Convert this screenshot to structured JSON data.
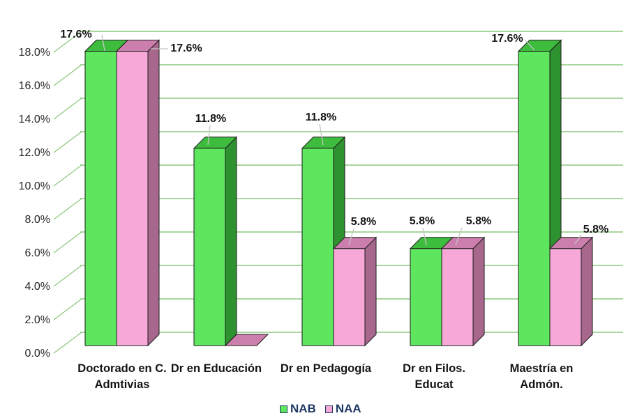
{
  "chart_data": {
    "type": "bar",
    "subtype": "3d-clustered-column",
    "title": "",
    "categories": [
      "Doctorado en C. Admtivias",
      "Dr en Educación",
      "Dr en Pedagogía",
      "Dr en Filos. Educat",
      "Maestría en Admón."
    ],
    "category_display_lines": [
      [
        "Doctorado en C.",
        "Admtivias"
      ],
      [
        "Dr en Educación"
      ],
      [
        "Dr en Pedagogía"
      ],
      [
        "Dr en Filos.",
        "Educat"
      ],
      [
        "Maestría en",
        "Admón."
      ]
    ],
    "series": [
      {
        "name": "NAB",
        "values": [
          17.6,
          11.8,
          11.8,
          5.8,
          17.6
        ],
        "labels": [
          "17.6%",
          "11.8%",
          "11.8%",
          "5.8%",
          "17.6%"
        ],
        "color_front": "#5FE65F",
        "color_top": "#3EBC3E",
        "color_side": "#2E9230"
      },
      {
        "name": "NAA",
        "values": [
          17.6,
          0,
          5.8,
          5.8,
          5.8
        ],
        "labels": [
          "17.6%",
          null,
          "5.8%",
          "5.8%",
          "5.8%"
        ],
        "color_front": "#F8A8D8",
        "color_top": "#CC7FAC",
        "color_side": "#A8688E"
      }
    ],
    "y_axis": {
      "min": 0,
      "max": 18,
      "step": 2,
      "tick_labels": [
        "0.0%",
        "2.0%",
        "4.0%",
        "6.0%",
        "8.0%",
        "10.0%",
        "12.0%",
        "14.0%",
        "16.0%",
        "18.0%"
      ],
      "format": "percent"
    },
    "grid": true,
    "gridline_color": "#8CC87D",
    "legend": {
      "position": "bottom",
      "entries": [
        "NAB",
        "NAA"
      ],
      "text_color": "#1F3864"
    },
    "label_text_color": "#141414",
    "axis_text_color": "#262626",
    "leader_line_color": "#C4C4C4",
    "bar_outline_color": "#1a1a1a",
    "background": "#FFFFFF"
  }
}
